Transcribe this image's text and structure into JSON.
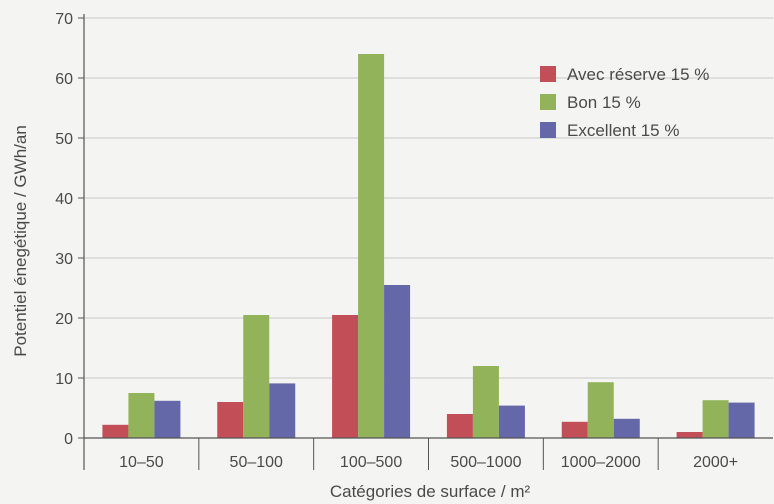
{
  "chart_data": {
    "type": "bar",
    "title": "",
    "xlabel": "Catégories de surface / m²",
    "ylabel": "Potentiel énegétique / GWh/an",
    "ylim": [
      0,
      70
    ],
    "yticks": [
      0,
      10,
      20,
      30,
      40,
      50,
      60,
      70
    ],
    "grid": true,
    "legend_position": "top-right",
    "categories": [
      "10–50",
      "50–100",
      "100–500",
      "500–1000",
      "1000–2000",
      "2000+"
    ],
    "series": [
      {
        "name": "Avec réserve 15 %",
        "color": "#c24f58",
        "values": [
          2.2,
          6.0,
          20.5,
          4.0,
          2.7,
          1.0
        ]
      },
      {
        "name": "Bon 15 %",
        "color": "#93b35a",
        "values": [
          7.5,
          20.5,
          64.0,
          12.0,
          9.3,
          6.3
        ]
      },
      {
        "name": "Excellent 15 %",
        "color": "#6468a8",
        "values": [
          6.2,
          9.1,
          25.5,
          5.4,
          3.2,
          5.9
        ]
      }
    ]
  }
}
